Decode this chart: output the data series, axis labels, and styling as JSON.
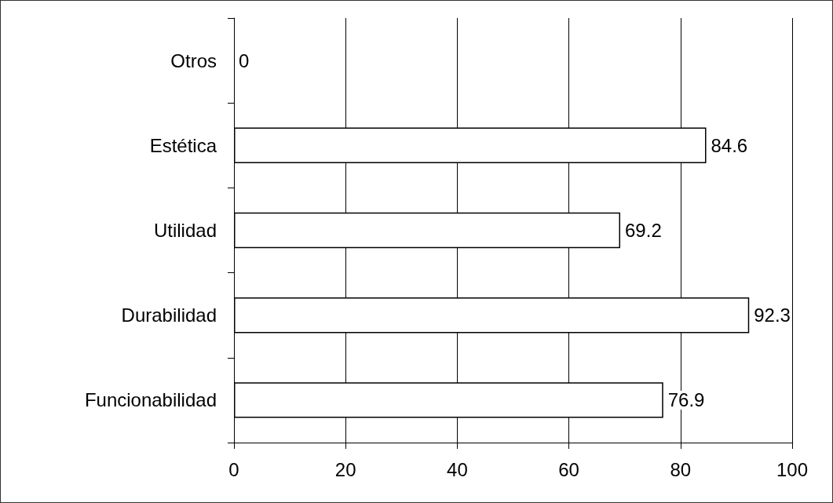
{
  "chart_data": {
    "type": "bar",
    "orientation": "horizontal",
    "categories": [
      "Otros",
      "Estética",
      "Utilidad",
      "Durabilidad",
      "Funcionabilidad"
    ],
    "values": [
      0,
      84.6,
      69.2,
      92.3,
      76.9
    ],
    "color": "#ffffff",
    "xlim": [
      0,
      100
    ],
    "xticks": [
      0,
      20,
      40,
      60,
      80,
      100
    ],
    "grid": "x",
    "data_labels": true
  }
}
